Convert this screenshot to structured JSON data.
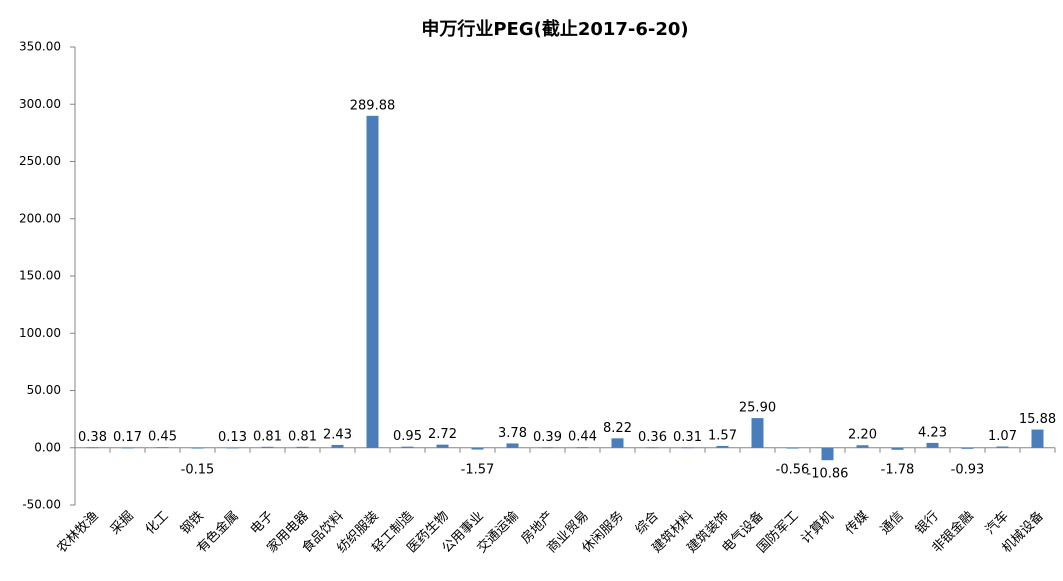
{
  "chart_data": {
    "type": "bar",
    "title": "申万行业PEG(截止2017-6-20)",
    "categories": [
      "农林牧渔",
      "采掘",
      "化工",
      "钢铁",
      "有色金属",
      "电子",
      "家用电器",
      "食品饮料",
      "纺织服装",
      "轻工制造",
      "医药生物",
      "公用事业",
      "交通运输",
      "房地产",
      "商业贸易",
      "休闲服务",
      "综合",
      "建筑材料",
      "建筑装饰",
      "电气设备",
      "国防军工",
      "计算机",
      "传媒",
      "通信",
      "银行",
      "非银金融",
      "汽车",
      "机械设备"
    ],
    "values": [
      0.38,
      0.17,
      0.45,
      -0.15,
      0.13,
      0.81,
      0.81,
      2.43,
      289.88,
      0.95,
      2.72,
      -1.57,
      3.78,
      0.39,
      0.44,
      8.22,
      0.36,
      0.31,
      1.57,
      25.9,
      -0.56,
      -10.86,
      2.2,
      -1.78,
      4.23,
      -0.93,
      1.07,
      15.88
    ],
    "value_labels": [
      "0.38",
      "0.17",
      "0.45",
      "-0.15",
      "0.13",
      "0.81",
      "0.81",
      "2.43",
      "289.88",
      "0.95",
      "2.72",
      "-1.57",
      "3.78",
      "0.39",
      "0.44",
      "8.22",
      "0.36",
      "0.31",
      "1.57",
      "25.90",
      "-0.56",
      "-10.86",
      "2.20",
      "-1.78",
      "4.23",
      "-0.93",
      "1.07",
      "15.88"
    ],
    "color": "#4a7ebb",
    "ylim": [
      -50,
      350
    ],
    "yticks": [
      {
        "value": -50,
        "label": "-50.00"
      },
      {
        "value": 0,
        "label": "0.00"
      },
      {
        "value": 50,
        "label": "50.00"
      },
      {
        "value": 100,
        "label": "100.00"
      },
      {
        "value": 150,
        "label": "150.00"
      },
      {
        "value": 200,
        "label": "200.00"
      },
      {
        "value": 250,
        "label": "250.00"
      },
      {
        "value": 300,
        "label": "300.00"
      },
      {
        "value": 350,
        "label": "350.00"
      }
    ],
    "grid": false
  }
}
